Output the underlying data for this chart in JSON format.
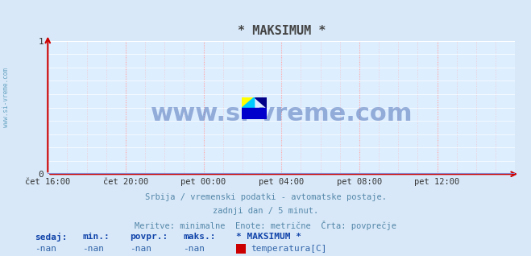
{
  "title": "* MAKSIMUM *",
  "title_color": "#444444",
  "bg_color": "#d8e8f8",
  "plot_bg_color": "#ddeeff",
  "grid_color_h": "#ffffff",
  "grid_color_v": "#ffaaaa",
  "x_tick_labels": [
    "čet 16:00",
    "čet 20:00",
    "pet 00:00",
    "pet 04:00",
    "pet 08:00",
    "pet 12:00"
  ],
  "x_tick_positions": [
    0,
    1,
    2,
    3,
    4,
    5
  ],
  "ylim": [
    0,
    1
  ],
  "xlim": [
    0,
    6
  ],
  "ytick_positions": [
    0,
    1
  ],
  "ytick_labels": [
    "0",
    "1"
  ],
  "axis_color": "#8888cc",
  "arrow_color": "#cc0000",
  "watermark_text": "www.si-vreme.com",
  "watermark_color": "#5577bb",
  "watermark_alpha": 0.5,
  "side_text": "www.si-vreme.com",
  "side_text_color": "#5599bb",
  "subtitle_lines": [
    "Srbija / vremenski podatki - avtomatske postaje.",
    "zadnji dan / 5 minut.",
    "Meritve: minimalne  Enote: metrične  Črta: povprečje"
  ],
  "subtitle_color": "#5588aa",
  "legend_labels_bold": [
    "sedaj:",
    "min.:",
    "povpr.:",
    "maks.:",
    "* MAKSIMUM *"
  ],
  "legend_values": [
    "-nan",
    "-nan",
    "-nan",
    "-nan"
  ],
  "legend_swatch_color": "#cc0000",
  "legend_series_label": "temperatura[C]",
  "legend_color": "#3366aa",
  "legend_bold_color": "#1144aa"
}
